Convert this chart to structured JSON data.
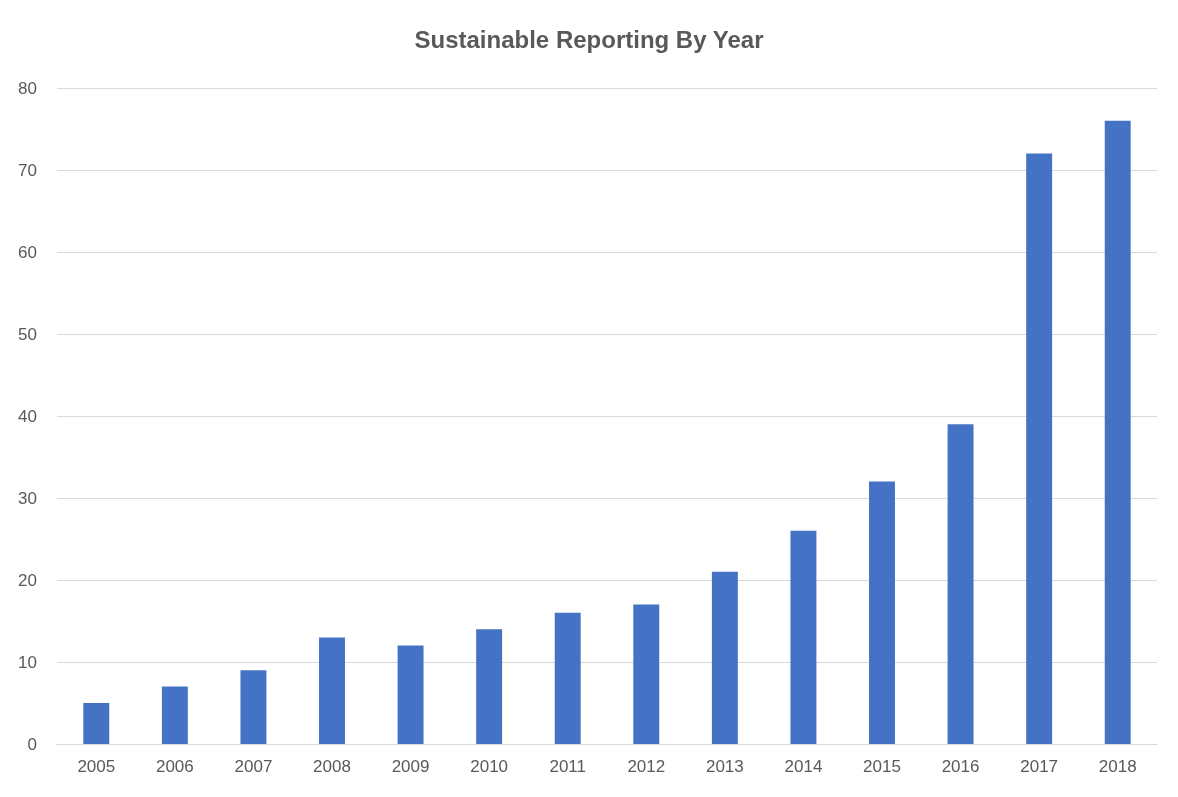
{
  "chart_data": {
    "type": "bar",
    "title": "Sustainable Reporting By Year",
    "categories": [
      "2005",
      "2006",
      "2007",
      "2008",
      "2009",
      "2010",
      "2011",
      "2012",
      "2013",
      "2014",
      "2015",
      "2016",
      "2017",
      "2018"
    ],
    "values": [
      5,
      7,
      9,
      13,
      12,
      14,
      16,
      17,
      21,
      26,
      32,
      39,
      72,
      76
    ],
    "color": "#4472c4",
    "ylim": [
      0,
      80
    ],
    "yticks": [
      0,
      10,
      20,
      30,
      40,
      50,
      60,
      70,
      80
    ],
    "grid": "y"
  }
}
